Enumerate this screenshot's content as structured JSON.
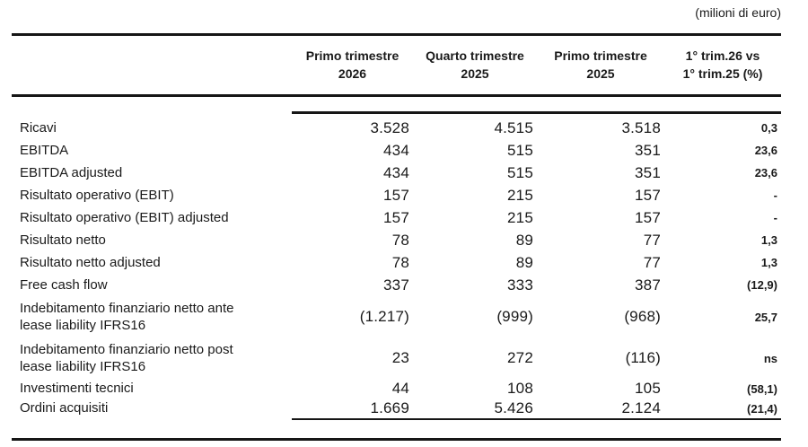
{
  "unit_note": "(milioni di euro)",
  "colors": {
    "text": "#1a1a1a",
    "rule": "#161616",
    "background": "#ffffff"
  },
  "table": {
    "headers": [
      "Primo trimestre\n2026",
      "Quarto trimestre\n2025",
      "Primo trimestre\n2025",
      "1° trim.26 vs\n1° trim.25 (%)"
    ],
    "rows": [
      {
        "label": "Ricavi",
        "values": [
          "3.528",
          "4.515",
          "3.518",
          "0,3"
        ]
      },
      {
        "label": "EBITDA",
        "values": [
          "434",
          "515",
          "351",
          "23,6"
        ]
      },
      {
        "label": "EBITDA adjusted",
        "values": [
          "434",
          "515",
          "351",
          "23,6"
        ]
      },
      {
        "label": "Risultato operativo (EBIT)",
        "values": [
          "157",
          "215",
          "157",
          "-"
        ]
      },
      {
        "label": "Risultato operativo (EBIT) adjusted",
        "values": [
          "157",
          "215",
          "157",
          "-"
        ]
      },
      {
        "label": "Risultato netto",
        "values": [
          "78",
          "89",
          "77",
          "1,3"
        ]
      },
      {
        "label": "Risultato netto adjusted",
        "values": [
          "78",
          "89",
          "77",
          "1,3"
        ]
      },
      {
        "label": "Free cash flow",
        "values": [
          "337",
          "333",
          "387",
          "(12,9)"
        ]
      },
      {
        "label": "Indebitamento finanziario netto ante\nlease liability IFRS16",
        "values": [
          "(1.217)",
          "(999)",
          "(968)",
          "25,7"
        ]
      },
      {
        "label": "Indebitamento finanziario netto post\nlease liability IFRS16",
        "values": [
          "23",
          "272",
          "(116)",
          "ns"
        ]
      },
      {
        "label": "Investimenti tecnici",
        "values": [
          "44",
          "108",
          "105",
          "(58,1)"
        ]
      },
      {
        "label": "Ordini acquisiti",
        "values": [
          "1.669",
          "5.426",
          "2.124",
          "(21,4)"
        ]
      }
    ]
  }
}
